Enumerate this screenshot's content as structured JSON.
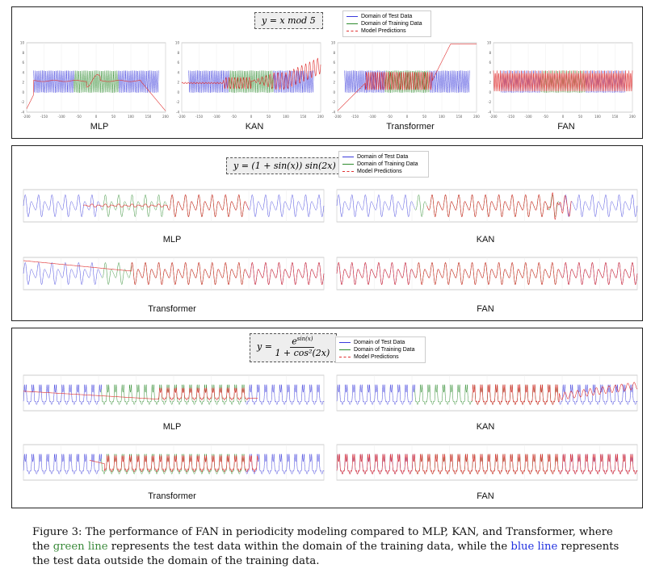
{
  "figure": {
    "panels": [
      {
        "formula_text": "y = x mod 5",
        "legend": [
          "Domain of Test Data",
          "Domain of Training Data",
          "Model Predictions"
        ],
        "subplots": [
          {
            "label": "MLP",
            "x_ticks": [
              "-200",
              "-150",
              "-100",
              "-50",
              "0",
              "50",
              "100",
              "150",
              "200"
            ],
            "y_ticks": [
              "10",
              "8",
              "6",
              "4",
              "2",
              "0",
              "-2",
              "-4"
            ]
          },
          {
            "label": "KAN",
            "x_ticks": [
              "-200",
              "-150",
              "-100",
              "-50",
              "0",
              "50",
              "100",
              "150",
              "200"
            ],
            "y_ticks": [
              "10",
              "8",
              "6",
              "4",
              "2",
              "0",
              "-2",
              "-4"
            ]
          },
          {
            "label": "Transformer",
            "x_ticks": [
              "-200",
              "-150",
              "-100",
              "-50",
              "0",
              "50",
              "100",
              "150",
              "200"
            ],
            "y_ticks": [
              "10",
              "8",
              "6",
              "4",
              "2",
              "0",
              "-2",
              "-4"
            ]
          },
          {
            "label": "FAN",
            "x_ticks": [
              "-200",
              "-150",
              "-100",
              "-50",
              "0",
              "50",
              "100",
              "150",
              "200"
            ],
            "y_ticks": [
              "10",
              "8",
              "6",
              "4",
              "2",
              "0",
              "-2",
              "-4"
            ]
          }
        ]
      },
      {
        "formula_text": "y = (1 + sin(x)) sin(2x)",
        "legend": [
          "Domain of Test Data",
          "Domain of Training Data",
          "Model Predictions"
        ],
        "subplots": [
          {
            "label": "MLP"
          },
          {
            "label": "KAN"
          },
          {
            "label": "Transformer"
          },
          {
            "label": "FAN"
          }
        ]
      },
      {
        "formula_num": "e^sin(x)",
        "formula_num_base": "e",
        "formula_num_sup": "sin(x)",
        "formula_prefix": "y =",
        "formula_den": "1 + cos²(2x)",
        "legend": [
          "Domain of Test Data",
          "Domain of Training Data",
          "Model Predictions"
        ],
        "subplots": [
          {
            "label": "MLP"
          },
          {
            "label": "KAN"
          },
          {
            "label": "Transformer"
          },
          {
            "label": "FAN"
          }
        ]
      }
    ],
    "colors": {
      "test": "#3b3bdc",
      "train": "#2e8b2e",
      "pred": "#e03030"
    }
  },
  "caption": {
    "part1": "Figure 3: The performance of FAN in periodicity modeling compared to MLP, KAN, and Transformer, where the ",
    "green_text": "green line",
    "part2": " represents the test data within the domain of the training data, while the ",
    "blue_text": "blue line",
    "part3": " represents the test data outside the domain of the training data."
  }
}
